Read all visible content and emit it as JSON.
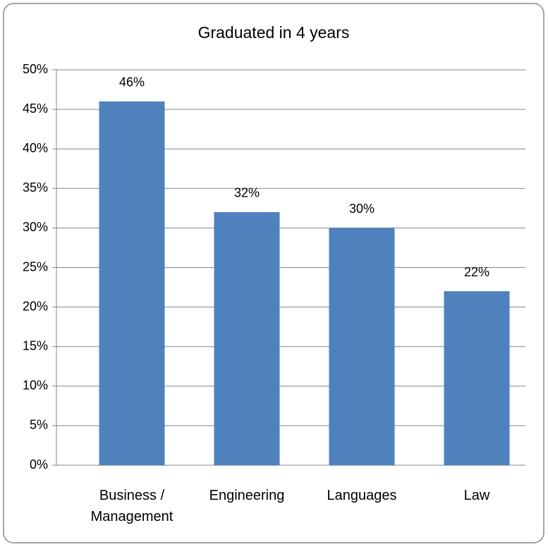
{
  "chart_data": {
    "type": "bar",
    "title": "Graduated in 4 years",
    "categories": [
      "Business / Management",
      "Engineering",
      "Languages",
      "Law"
    ],
    "values": [
      46,
      32,
      30,
      22
    ],
    "value_labels": [
      "46%",
      "32%",
      "30%",
      "22%"
    ],
    "color": "#4f81bd",
    "ylim": [
      0,
      50
    ],
    "yticks": [
      {
        "value": 0,
        "label": "0%"
      },
      {
        "value": 5,
        "label": "5%"
      },
      {
        "value": 10,
        "label": "10%"
      },
      {
        "value": 15,
        "label": "15%"
      },
      {
        "value": 20,
        "label": "20%"
      },
      {
        "value": 25,
        "label": "25%"
      },
      {
        "value": 30,
        "label": "30%"
      },
      {
        "value": 35,
        "label": "35%"
      },
      {
        "value": 40,
        "label": "40%"
      },
      {
        "value": 45,
        "label": "45%"
      },
      {
        "value": 50,
        "label": "50%"
      }
    ],
    "grid": true
  }
}
